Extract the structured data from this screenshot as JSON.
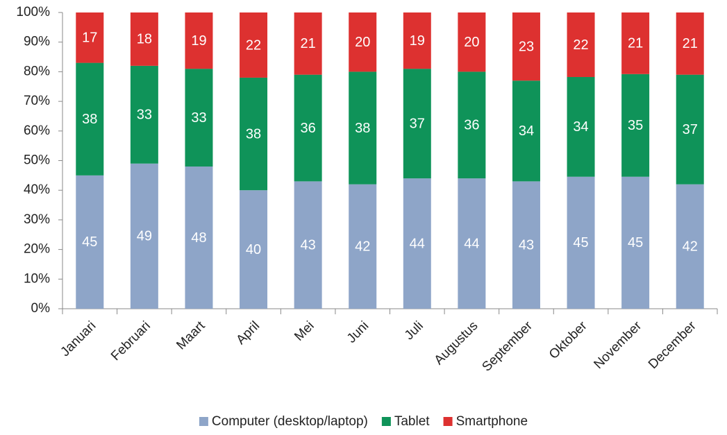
{
  "chart_data": {
    "type": "bar",
    "stacked": "percent",
    "categories": [
      "Januari",
      "Februari",
      "Maart",
      "April",
      "Mei",
      "Juni",
      "Juli",
      "Augustus",
      "September",
      "Oktober",
      "November",
      "December"
    ],
    "series": [
      {
        "name": "Computer (desktop/laptop)",
        "color": "#8ea5c8",
        "values": [
          45,
          49,
          48,
          40,
          43,
          42,
          44,
          44,
          43,
          45,
          45,
          42
        ]
      },
      {
        "name": "Tablet",
        "color": "#0f9359",
        "values": [
          38,
          33,
          33,
          38,
          36,
          38,
          37,
          36,
          34,
          34,
          35,
          37
        ]
      },
      {
        "name": "Smartphone",
        "color": "#dd3130",
        "values": [
          17,
          18,
          19,
          22,
          21,
          20,
          19,
          20,
          23,
          22,
          21,
          21
        ]
      }
    ],
    "ylim": [
      0,
      100
    ],
    "yticks": [
      {
        "value": 0,
        "label": "0%"
      },
      {
        "value": 10,
        "label": "10%"
      },
      {
        "value": 20,
        "label": "20%"
      },
      {
        "value": 30,
        "label": "30%"
      },
      {
        "value": 40,
        "label": "40%"
      },
      {
        "value": 50,
        "label": "50%"
      },
      {
        "value": 60,
        "label": "60%"
      },
      {
        "value": 70,
        "label": "70%"
      },
      {
        "value": 80,
        "label": "80%"
      },
      {
        "value": 90,
        "label": "90%"
      },
      {
        "value": 100,
        "label": "100%"
      }
    ],
    "legend": "bottom",
    "grid": false
  }
}
